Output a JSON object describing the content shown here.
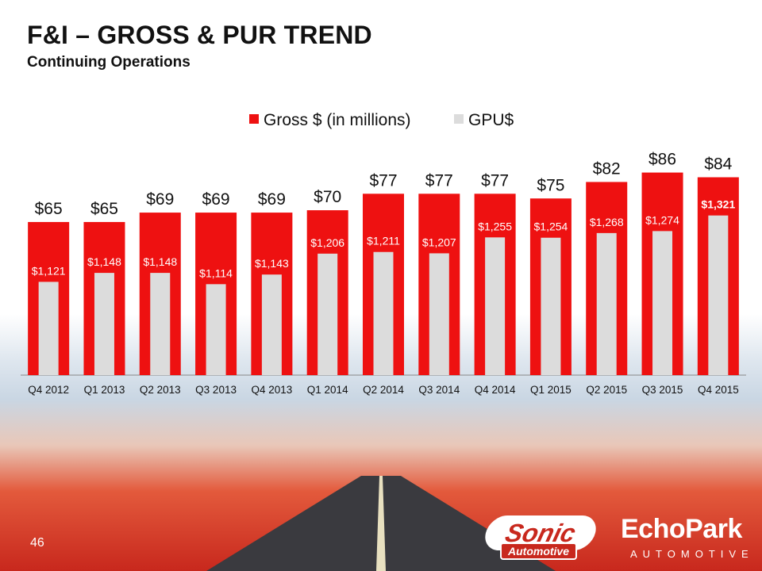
{
  "slide": {
    "title": "F&I – GROSS & PUR TREND",
    "subtitle": "Continuing Operations",
    "page_number": "46"
  },
  "logos": {
    "sonic_main": "Sonic",
    "sonic_sub": "Automotive",
    "echopark_main": "EchoPark",
    "echopark_sub": "AUTOMOTIVE"
  },
  "colors": {
    "gross": "#ee1111",
    "gpu": "#dcdcdc",
    "gross_label": "#111111",
    "gpu_label": "#ffffff"
  },
  "chart_data": {
    "type": "bar",
    "title": "",
    "xlabel": "",
    "ylabel": "",
    "legend_position": "top-center",
    "categories": [
      "Q4 2012",
      "Q1 2013",
      "Q2 2013",
      "Q3 2013",
      "Q4 2013",
      "Q1 2014",
      "Q2 2014",
      "Q3 2014",
      "Q4 2014",
      "Q1 2015",
      "Q2 2015",
      "Q3 2015",
      "Q4 2015"
    ],
    "series": [
      {
        "name": "Gross $ (in millions)",
        "values": [
          65,
          65,
          69,
          69,
          69,
          70,
          77,
          77,
          77,
          75,
          82,
          86,
          84
        ],
        "labels": [
          "$65",
          "$65",
          "$69",
          "$69",
          "$69",
          "$70",
          "$77",
          "$77",
          "$77",
          "$75",
          "$82",
          "$86",
          "$84"
        ],
        "ylim": [
          0,
          100
        ]
      },
      {
        "name": "GPU$",
        "values": [
          1121,
          1148,
          1148,
          1114,
          1143,
          1206,
          1211,
          1207,
          1255,
          1254,
          1268,
          1274,
          1321
        ],
        "labels": [
          "$1,121",
          "$1,148",
          "$1,148",
          "$1,114",
          "$1,143",
          "$1,206",
          "$1,211",
          "$1,207",
          "$1,255",
          "$1,254",
          "$1,268",
          "$1,274",
          "$1,321"
        ],
        "ylim": [
          840,
          1500
        ]
      }
    ]
  }
}
